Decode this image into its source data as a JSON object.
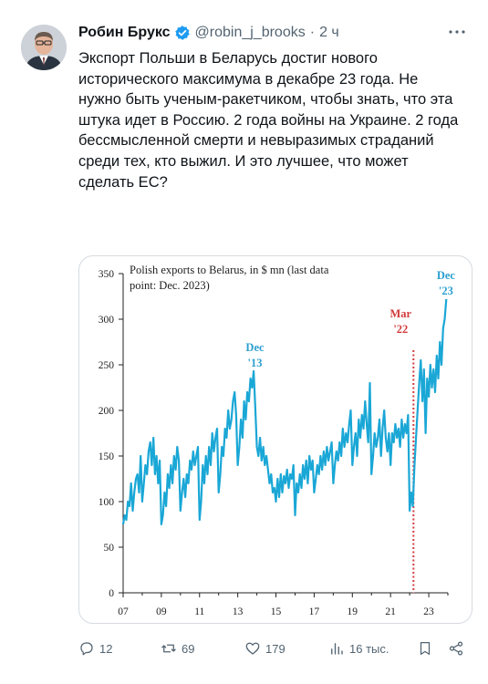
{
  "tweet": {
    "author_name": "Робин Брукс",
    "handle": "@robin_j_brooks",
    "separator": "·",
    "time": "2 ч",
    "text": "Экспорт Польши в Беларусь достиг нового исторического максимума в декабре 23 года. Не нужно быть ученым-ракетчиком, чтобы знать, что эта штука идет в Россию. 2 года войны на Украине. 2 года бессмысленной смерти и невыразимых страданий среди тех, кто выжил. И это лучшее, что может сделать ЕС?"
  },
  "chart_data": {
    "type": "line",
    "title": "Polish exports to Belarus, in $ mn (last data point: Dec. 2023)",
    "title_lines": [
      "Polish exports to Belarus, in $ mn (last data",
      "point: Dec. 2023)"
    ],
    "xlabel": "",
    "ylabel": "",
    "x_ticks": [
      "07",
      "09",
      "11",
      "13",
      "15",
      "17",
      "19",
      "21",
      "23"
    ],
    "y_ticks": [
      "0",
      "50",
      "100",
      "150",
      "200",
      "250",
      "300",
      "350"
    ],
    "xlim": [
      2007,
      2024
    ],
    "ylim": [
      0,
      350
    ],
    "grid": false,
    "series_color": "#1aa7d6",
    "annotation_color": "#2a9fd0",
    "marker_color": "#d43b3b",
    "annotations": [
      {
        "text": "Dec\n'13",
        "lines": [
          "Dec",
          "'13"
        ],
        "x": 2013.9,
        "y": 243,
        "color": "#2a9fd0"
      },
      {
        "text": "Mar\n'22",
        "lines": [
          "Mar",
          "'22"
        ],
        "x": 2022.2,
        "y": 280,
        "color": "#d43b3b",
        "vline": true
      },
      {
        "text": "Dec\n'23",
        "lines": [
          "Dec",
          "'23"
        ],
        "x": 2023.9,
        "y": 322,
        "color": "#2a9fd0"
      }
    ],
    "series": [
      {
        "x_start": 2007.0,
        "x_step": 0.083333,
        "values": [
          75,
          85,
          80,
          100,
          95,
          120,
          90,
          110,
          125,
          130,
          110,
          150,
          100,
          120,
          140,
          130,
          155,
          165,
          140,
          170,
          130,
          150,
          120,
          145,
          75,
          85,
          110,
          95,
          130,
          115,
          140,
          120,
          150,
          135,
          160,
          145,
          90,
          110,
          125,
          105,
          130,
          120,
          145,
          135,
          155,
          140,
          150,
          160,
          80,
          100,
          140,
          120,
          150,
          130,
          160,
          140,
          175,
          155,
          170,
          180,
          110,
          130,
          160,
          150,
          180,
          170,
          200,
          180,
          190,
          210,
          220,
          195,
          140,
          160,
          190,
          170,
          210,
          190,
          220,
          210,
          235,
          225,
          243,
          205,
          160,
          150,
          170,
          145,
          160,
          140,
          150,
          135,
          120,
          130,
          110,
          115,
          100,
          125,
          105,
          130,
          110,
          128,
          120,
          135,
          115,
          130,
          125,
          140,
          85,
          120,
          110,
          130,
          115,
          140,
          125,
          145,
          120,
          150,
          135,
          145,
          110,
          125,
          140,
          130,
          150,
          135,
          155,
          140,
          160,
          145,
          155,
          165,
          120,
          140,
          155,
          145,
          165,
          150,
          180,
          160,
          175,
          165,
          185,
          200,
          140,
          160,
          175,
          150,
          190,
          170,
          195,
          180,
          210,
          185,
          165,
          230,
          130,
          150,
          175,
          160,
          170,
          190,
          150,
          180,
          200,
          170,
          155,
          175,
          140,
          175,
          165,
          185,
          170,
          180,
          160,
          190,
          170,
          185,
          175,
          195,
          90,
          110,
          95,
          140,
          170,
          200,
          230,
          255,
          210,
          245,
          175,
          235,
          215,
          250,
          225,
          245,
          220,
          260,
          235,
          275,
          250,
          290,
          300,
          322
        ]
      }
    ]
  },
  "actions": {
    "replies": "12",
    "retweets": "69",
    "likes": "179",
    "views": "16 тыс."
  },
  "colors": {
    "text": "#0f1419",
    "secondary": "#536471",
    "verified": "#1d9bf0",
    "border": "#d6dbe0"
  }
}
